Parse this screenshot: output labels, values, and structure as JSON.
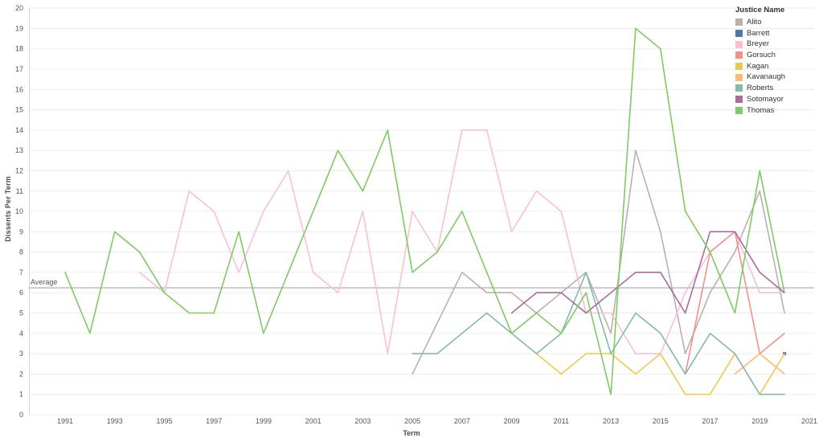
{
  "page": {
    "background": "#ffffff"
  },
  "chart_data": {
    "type": "line",
    "title": "",
    "xlabel": "Term",
    "ylabel": "Dissents Per Term",
    "ylim": [
      0,
      20
    ],
    "grid": "horizontal",
    "y_ticks": [
      0,
      1,
      2,
      3,
      4,
      5,
      6,
      7,
      8,
      9,
      10,
      11,
      12,
      13,
      14,
      15,
      16,
      17,
      18,
      19,
      20
    ],
    "x_ticks": [
      1991,
      1993,
      1995,
      1997,
      1999,
      2001,
      2003,
      2005,
      2007,
      2009,
      2011,
      2013,
      2015,
      2017,
      2019,
      2021
    ],
    "legend_title": "Justice Name",
    "legend_position": "top-right",
    "average_line": {
      "label": "Average",
      "value": 6.24
    },
    "series": [
      {
        "name": "Alito",
        "color": "#BAB0AC",
        "points": [
          [
            2005,
            2
          ],
          [
            2007,
            7
          ],
          [
            2008,
            6
          ],
          [
            2009,
            6
          ],
          [
            2010,
            5
          ],
          [
            2011,
            6
          ],
          [
            2012,
            7
          ],
          [
            2013,
            4
          ],
          [
            2014,
            13
          ],
          [
            2015,
            9
          ],
          [
            2016,
            3
          ],
          [
            2017,
            6
          ],
          [
            2018,
            8
          ],
          [
            2019,
            11
          ],
          [
            2020,
            5
          ]
        ]
      },
      {
        "name": "Barrett",
        "color": "#4E79A7",
        "points": [
          [
            2020,
            3
          ]
        ]
      },
      {
        "name": "Breyer",
        "color": "#FBBFD3",
        "points": [
          [
            1994,
            7
          ],
          [
            1995,
            6
          ],
          [
            1996,
            11
          ],
          [
            1997,
            10
          ],
          [
            1998,
            7
          ],
          [
            1999,
            10
          ],
          [
            2000,
            12
          ],
          [
            2001,
            7
          ],
          [
            2002,
            6
          ],
          [
            2003,
            10
          ],
          [
            2004,
            3
          ],
          [
            2005,
            10
          ],
          [
            2006,
            8
          ],
          [
            2007,
            14
          ],
          [
            2008,
            14
          ],
          [
            2009,
            9
          ],
          [
            2010,
            11
          ],
          [
            2011,
            10
          ],
          [
            2012,
            5
          ],
          [
            2013,
            5
          ],
          [
            2014,
            3
          ],
          [
            2015,
            3
          ],
          [
            2016,
            6
          ],
          [
            2017,
            8
          ],
          [
            2018,
            9
          ],
          [
            2019,
            6
          ],
          [
            2020,
            6
          ]
        ]
      },
      {
        "name": "Gorsuch",
        "color": "#F2918C",
        "points": [
          [
            2016,
            2
          ],
          [
            2017,
            8
          ],
          [
            2018,
            9
          ],
          [
            2019,
            3
          ],
          [
            2020,
            4
          ]
        ]
      },
      {
        "name": "Kagan",
        "color": "#EFC94F",
        "points": [
          [
            2010,
            3
          ],
          [
            2011,
            2
          ],
          [
            2012,
            3
          ],
          [
            2013,
            3
          ],
          [
            2014,
            2
          ],
          [
            2015,
            3
          ],
          [
            2016,
            1
          ],
          [
            2017,
            1
          ],
          [
            2018,
            3
          ],
          [
            2019,
            1
          ],
          [
            2020,
            3
          ]
        ]
      },
      {
        "name": "Kavanaugh",
        "color": "#FCBB77",
        "points": [
          [
            2018,
            2
          ],
          [
            2019,
            3
          ],
          [
            2020,
            2
          ]
        ]
      },
      {
        "name": "Roberts",
        "color": "#82BAAE",
        "points": [
          [
            2005,
            3
          ],
          [
            2006,
            3
          ],
          [
            2007,
            4
          ],
          [
            2008,
            5
          ],
          [
            2009,
            4
          ],
          [
            2010,
            3
          ],
          [
            2011,
            4
          ],
          [
            2012,
            7
          ],
          [
            2013,
            3
          ],
          [
            2014,
            5
          ],
          [
            2015,
            4
          ],
          [
            2016,
            2
          ],
          [
            2017,
            4
          ],
          [
            2018,
            3
          ],
          [
            2019,
            1
          ],
          [
            2020,
            1
          ]
        ]
      },
      {
        "name": "Sotomayor",
        "color": "#A86B9E",
        "points": [
          [
            2009,
            5
          ],
          [
            2010,
            6
          ],
          [
            2011,
            6
          ],
          [
            2012,
            5
          ],
          [
            2013,
            6
          ],
          [
            2014,
            7
          ],
          [
            2015,
            7
          ],
          [
            2016,
            5
          ],
          [
            2017,
            9
          ],
          [
            2018,
            9
          ],
          [
            2019,
            7
          ],
          [
            2020,
            6
          ]
        ]
      },
      {
        "name": "Thomas",
        "color": "#7DCB63",
        "points": [
          [
            1991,
            7
          ],
          [
            1992,
            4
          ],
          [
            1993,
            9
          ],
          [
            1994,
            8
          ],
          [
            1995,
            6
          ],
          [
            1996,
            5
          ],
          [
            1997,
            5
          ],
          [
            1998,
            9
          ],
          [
            1999,
            4
          ],
          [
            2000,
            7
          ],
          [
            2001,
            10
          ],
          [
            2002,
            13
          ],
          [
            2003,
            11
          ],
          [
            2004,
            14
          ],
          [
            2005,
            7
          ],
          [
            2006,
            8
          ],
          [
            2007,
            10
          ],
          [
            2008,
            7
          ],
          [
            2009,
            4
          ],
          [
            2010,
            5
          ],
          [
            2011,
            4
          ],
          [
            2012,
            6
          ],
          [
            2013,
            1
          ],
          [
            2014,
            19
          ],
          [
            2015,
            18
          ],
          [
            2016,
            10
          ],
          [
            2017,
            8
          ],
          [
            2018,
            5
          ],
          [
            2019,
            12
          ],
          [
            2020,
            6
          ]
        ]
      }
    ]
  }
}
